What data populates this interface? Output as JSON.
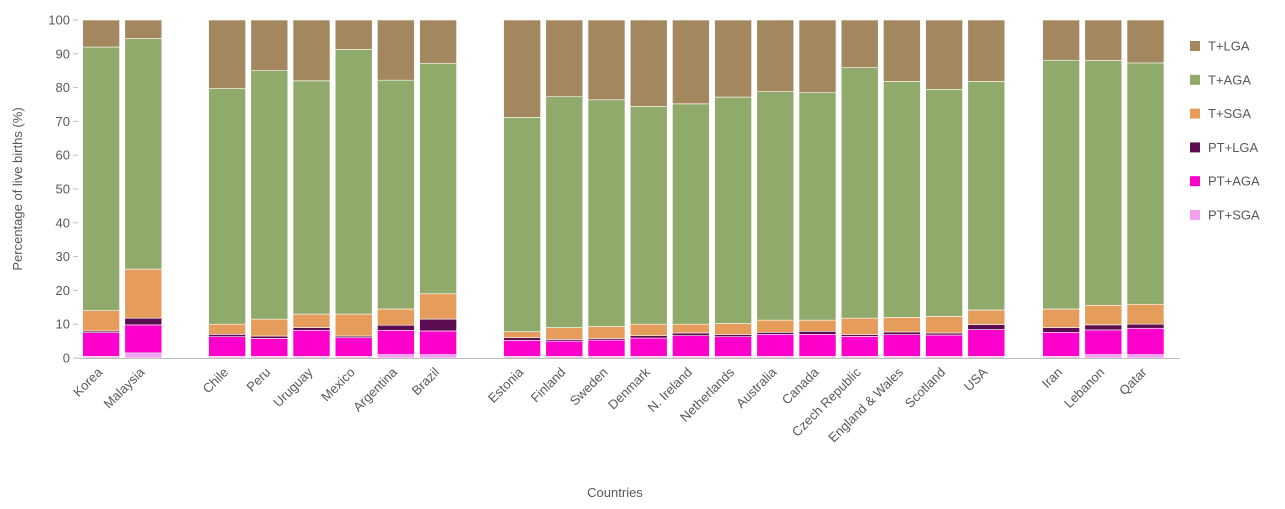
{
  "chart_data": {
    "type": "bar",
    "stacked": true,
    "xlabel": "Countries",
    "ylabel": "Percentage of live births (%)",
    "ylim": [
      0,
      100
    ],
    "yticks": [
      0,
      10,
      20,
      30,
      40,
      50,
      60,
      70,
      80,
      90,
      100
    ],
    "grid": false,
    "legend_position": "right",
    "groups": [
      [
        "Korea",
        "Malaysia"
      ],
      [
        "Chile",
        "Peru",
        "Uruguay",
        "Mexico",
        "Argentina",
        "Brazil"
      ],
      [
        "Estonia",
        "Finland",
        "Sweden",
        "Denmark",
        "N. Ireland",
        "Netherlands",
        "Australia",
        "Canada",
        "Czech Republic",
        "England & Wales",
        "Scotland",
        "USA"
      ],
      [
        "Iran",
        "Lebanon",
        "Qatar"
      ]
    ],
    "categories": [
      "Korea",
      "Malaysia",
      "Chile",
      "Peru",
      "Uruguay",
      "Mexico",
      "Argentina",
      "Brazil",
      "Estonia",
      "Finland",
      "Sweden",
      "Denmark",
      "N. Ireland",
      "Netherlands",
      "Australia",
      "Canada",
      "Czech Republic",
      "England & Wales",
      "Scotland",
      "USA",
      "Iran",
      "Lebanon",
      "Qatar"
    ],
    "series": [
      {
        "name": "PT+SGA",
        "color": "#f49ff2",
        "values": [
          0.5,
          1.5,
          0.5,
          0.5,
          0.5,
          0.5,
          1.0,
          1.0,
          0.5,
          0.5,
          0.5,
          0.5,
          0.5,
          0.5,
          0.5,
          0.5,
          0.5,
          0.5,
          0.5,
          0.5,
          0.5,
          1.0,
          1.0
        ]
      },
      {
        "name": "PT+AGA",
        "color": "#ff00cc",
        "values": [
          7.0,
          8.3,
          5.8,
          5.3,
          7.7,
          5.5,
          7.2,
          7.0,
          4.7,
          4.5,
          4.8,
          5.4,
          6.1,
          5.8,
          6.5,
          6.5,
          5.9,
          6.4,
          6.3,
          7.9,
          7.1,
          7.3,
          7.8
        ]
      },
      {
        "name": "PT+LGA",
        "color": "#5c0d52",
        "values": [
          0.5,
          2.0,
          0.7,
          0.7,
          0.8,
          0.5,
          1.5,
          3.5,
          0.8,
          0.5,
          0.5,
          0.7,
          0.8,
          0.6,
          0.6,
          0.9,
          0.5,
          0.8,
          0.6,
          1.5,
          1.4,
          1.5,
          1.2
        ]
      },
      {
        "name": "T+SGA",
        "color": "#e69d5c",
        "values": [
          6.0,
          14.5,
          3.0,
          5.0,
          4.0,
          6.5,
          4.8,
          7.5,
          1.8,
          3.5,
          3.5,
          3.4,
          2.6,
          3.3,
          3.6,
          3.3,
          4.9,
          4.3,
          4.9,
          4.3,
          5.5,
          5.8,
          5.9
        ]
      },
      {
        "name": "T+AGA",
        "color": "#8faa6b",
        "values": [
          78.0,
          68.2,
          69.7,
          73.5,
          69.0,
          78.3,
          67.7,
          68.2,
          63.4,
          68.3,
          67.1,
          64.4,
          65.2,
          67.0,
          67.6,
          67.3,
          74.1,
          69.8,
          67.2,
          67.6,
          73.6,
          72.4,
          71.4
        ]
      },
      {
        "name": "T+LGA",
        "color": "#a3875e",
        "values": [
          8.0,
          5.5,
          20.3,
          15.0,
          18.0,
          8.7,
          17.8,
          12.8,
          28.8,
          22.7,
          23.6,
          25.6,
          24.8,
          22.8,
          21.2,
          21.5,
          14.1,
          18.2,
          20.5,
          18.2,
          11.9,
          12.0,
          12.7
        ]
      }
    ]
  }
}
